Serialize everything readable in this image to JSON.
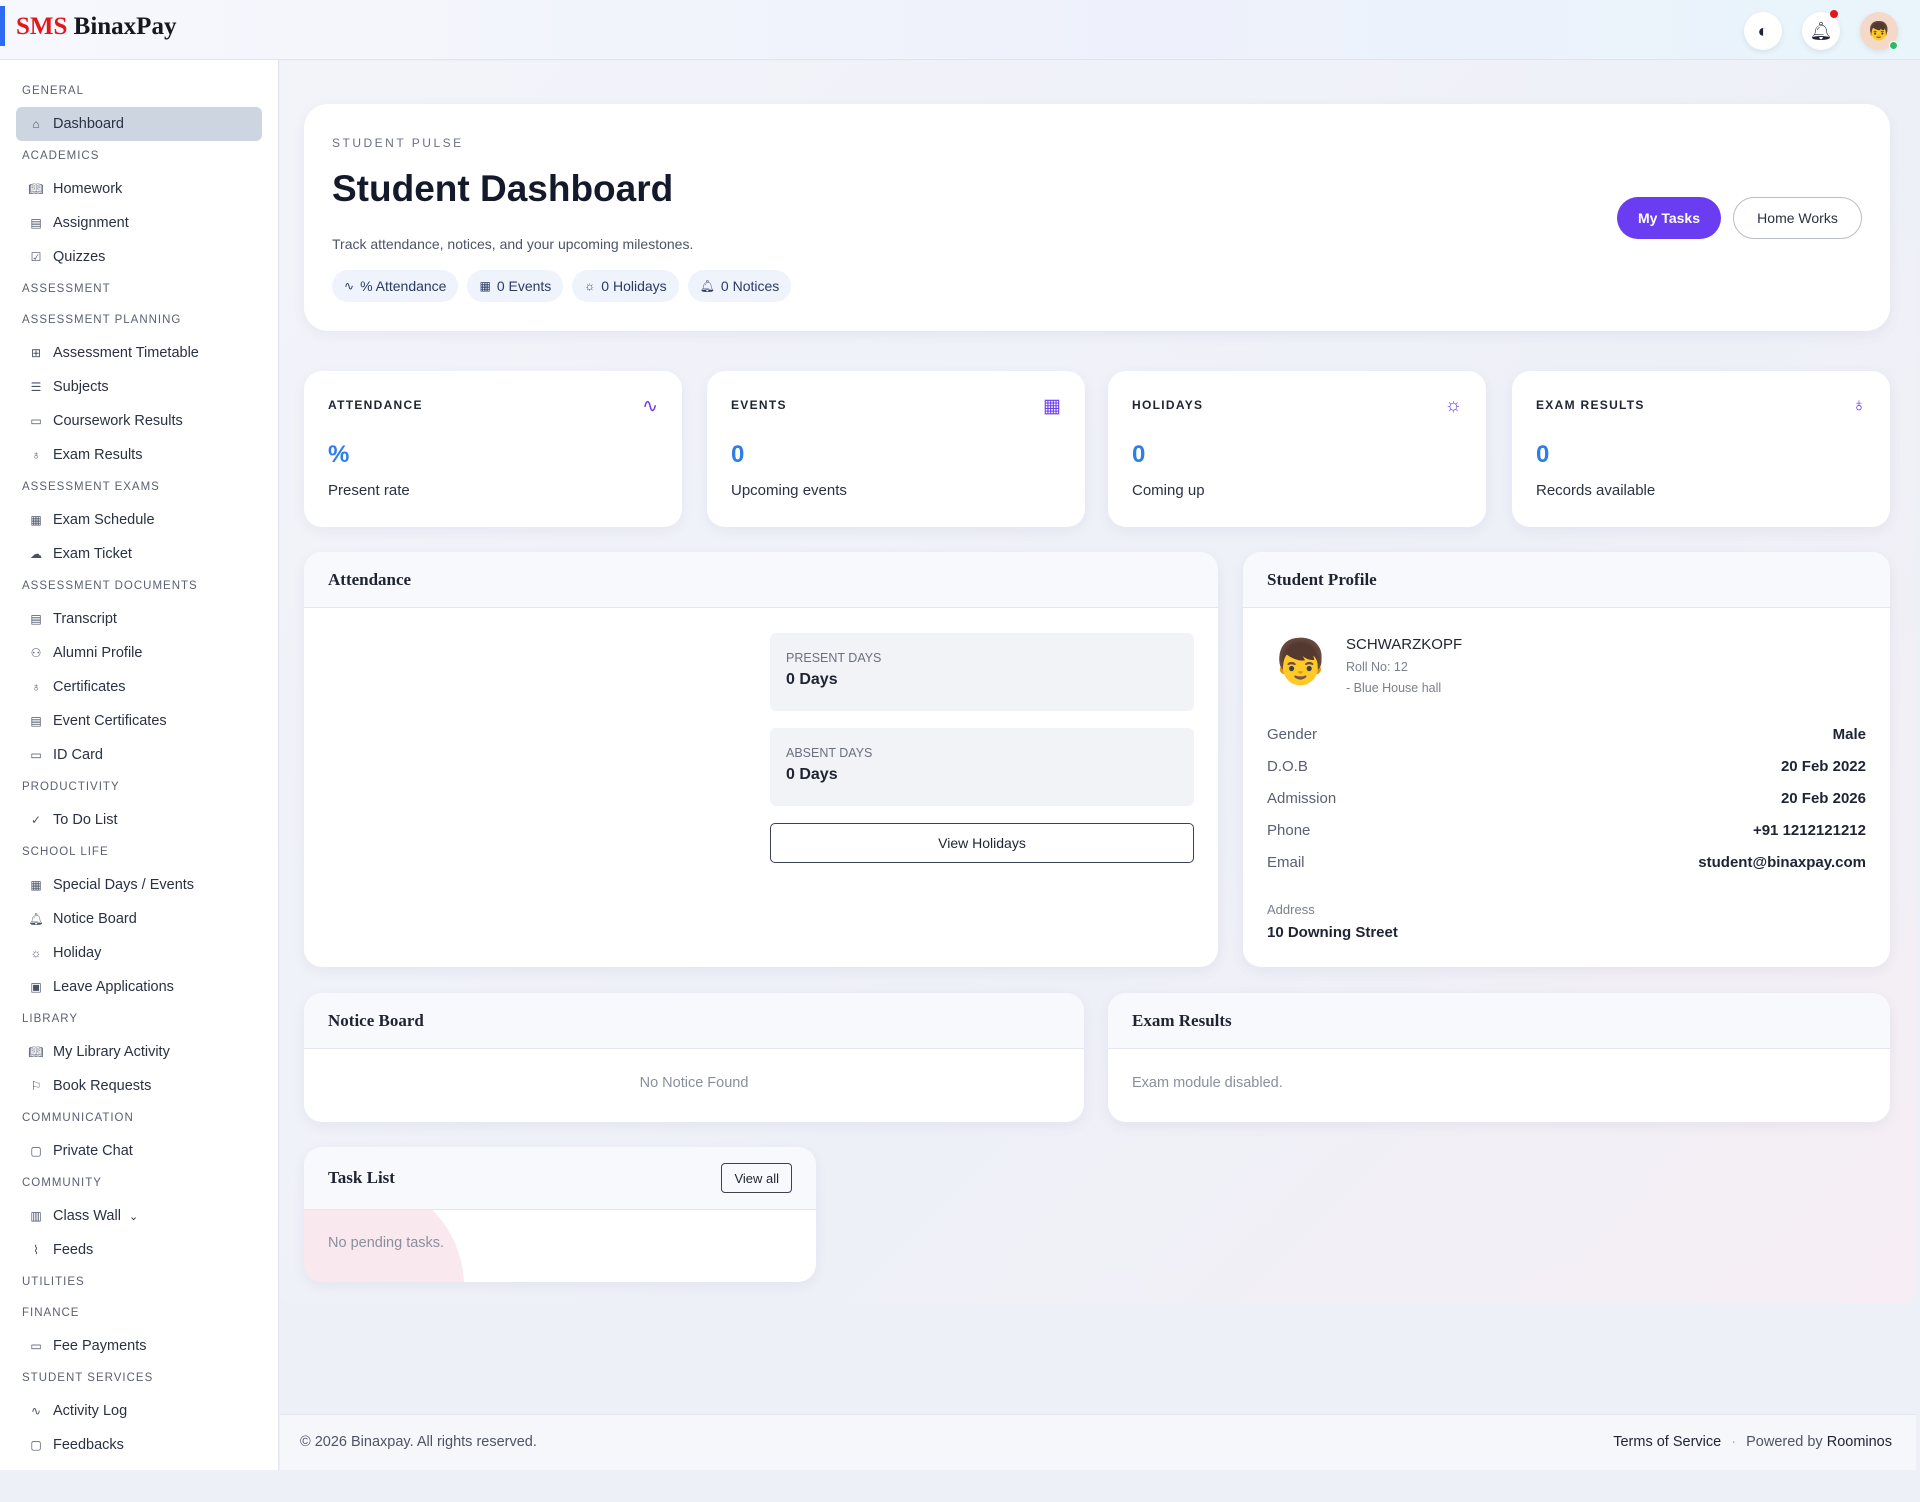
{
  "header": {
    "logo_a": "SMS",
    "logo_b": "BinaxPay"
  },
  "sidebar": [
    {
      "section": "GENERAL"
    },
    {
      "label": "Dashboard",
      "icon": "home-icon",
      "active": true
    },
    {
      "section": "ACADEMICS"
    },
    {
      "label": "Homework",
      "icon": "book-icon"
    },
    {
      "label": "Assignment",
      "icon": "file-icon"
    },
    {
      "label": "Quizzes",
      "icon": "checkbox-icon"
    },
    {
      "section": "ASSESSMENT"
    },
    {
      "section": "ASSESSMENT PLANNING"
    },
    {
      "label": "Assessment Timetable",
      "icon": "grid-icon"
    },
    {
      "label": "Subjects",
      "icon": "list-icon"
    },
    {
      "label": "Coursework Results",
      "icon": "clipboard-icon"
    },
    {
      "label": "Exam Results",
      "icon": "award-icon"
    },
    {
      "section": "ASSESSMENT EXAMS"
    },
    {
      "label": "Exam Schedule",
      "icon": "calendar-icon"
    },
    {
      "label": "Exam Ticket",
      "icon": "cloud-icon"
    },
    {
      "section": "ASSESSMENT DOCUMENTS"
    },
    {
      "label": "Transcript",
      "icon": "file-icon"
    },
    {
      "label": "Alumni Profile",
      "icon": "user-icon"
    },
    {
      "label": "Certificates",
      "icon": "award-icon"
    },
    {
      "label": "Event Certificates",
      "icon": "file-icon"
    },
    {
      "label": "ID Card",
      "icon": "card-icon"
    },
    {
      "section": "PRODUCTIVITY"
    },
    {
      "label": "To Do List",
      "icon": "check-circle-icon"
    },
    {
      "section": "SCHOOL LIFE"
    },
    {
      "label": "Special Days / Events",
      "icon": "calendar-icon"
    },
    {
      "label": "Notice Board",
      "icon": "bell-icon"
    },
    {
      "label": "Holiday",
      "icon": "sun-icon"
    },
    {
      "label": "Leave Applications",
      "icon": "briefcase-icon"
    },
    {
      "section": "LIBRARY"
    },
    {
      "label": "My Library Activity",
      "icon": "book-icon"
    },
    {
      "label": "Book Requests",
      "icon": "bookmark-icon"
    },
    {
      "section": "COMMUNICATION"
    },
    {
      "label": "Private Chat",
      "icon": "chat-icon"
    },
    {
      "section": "COMMUNITY"
    },
    {
      "label": "Class Wall",
      "icon": "layout-icon",
      "chevron": true
    },
    {
      "label": "Feeds",
      "icon": "rss-icon"
    },
    {
      "section": "UTILITIES"
    },
    {
      "section": "FINANCE"
    },
    {
      "label": "Fee Payments",
      "icon": "card-icon"
    },
    {
      "section": "STUDENT SERVICES"
    },
    {
      "label": "Activity Log",
      "icon": "activity-icon"
    },
    {
      "label": "Feedbacks",
      "icon": "chat-icon"
    }
  ],
  "hero": {
    "kicker": "STUDENT PULSE",
    "title": "Student Dashboard",
    "subtitle": "Track attendance, notices, and your upcoming milestones.",
    "chips": [
      {
        "icon": "activity-icon",
        "label": "% Attendance"
      },
      {
        "icon": "calendar-icon",
        "label": "0 Events"
      },
      {
        "icon": "sun-icon",
        "label": "0 Holidays"
      },
      {
        "icon": "bell-icon",
        "label": "0 Notices"
      }
    ],
    "my_tasks": "My Tasks",
    "home_works": "Home Works"
  },
  "stats": [
    {
      "label": "ATTENDANCE",
      "value": "%",
      "desc": "Present rate",
      "icon": "activity-icon"
    },
    {
      "label": "EVENTS",
      "value": "0",
      "desc": "Upcoming events",
      "icon": "calendar-icon"
    },
    {
      "label": "HOLIDAYS",
      "value": "0",
      "desc": "Coming up",
      "icon": "sun-icon"
    },
    {
      "label": "EXAM RESULTS",
      "value": "0",
      "desc": "Records available",
      "icon": "award-icon"
    }
  ],
  "attendance": {
    "title": "Attendance",
    "present_label": "PRESENT DAYS",
    "present_value": "0 Days",
    "absent_label": "ABSENT DAYS",
    "absent_value": "0 Days",
    "view_holidays": "View Holidays"
  },
  "profile": {
    "title": "Student Profile",
    "name": "SCHWARZKOPF",
    "roll": "Roll No: 12",
    "house": "- Blue House hall",
    "rows": [
      {
        "k": "Gender",
        "v": "Male"
      },
      {
        "k": "D.O.B",
        "v": "20 Feb 2022"
      },
      {
        "k": "Admission",
        "v": "20 Feb 2026"
      },
      {
        "k": "Phone",
        "v": "+91 1212121212"
      },
      {
        "k": "Email",
        "v": "student@binaxpay.com"
      }
    ],
    "address_label": "Address",
    "address": "10 Downing Street"
  },
  "notice": {
    "title": "Notice Board",
    "empty": "No Notice Found"
  },
  "exam": {
    "title": "Exam Results",
    "empty": "Exam module disabled."
  },
  "tasks": {
    "title": "Task List",
    "view_all": "View all",
    "empty": "No pending tasks."
  },
  "footer": {
    "copyright": "© 2026 Binaxpay. All rights reserved.",
    "terms": "Terms of Service",
    "sep": "·",
    "powered": "Powered by",
    "brand": "Roominos"
  },
  "colors": {
    "accent": "#6a3df2",
    "value": "#2f7de8",
    "logo_red": "#e3171b"
  }
}
